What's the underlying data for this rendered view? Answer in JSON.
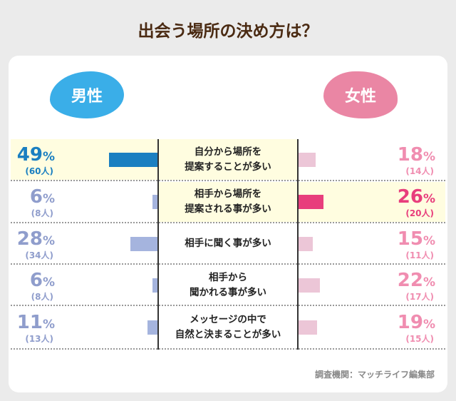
{
  "chart_data": {
    "type": "bar",
    "title": "出会う場所の決め方は？",
    "series": [
      {
        "name": "男性",
        "values": [
          49,
          6,
          28,
          6,
          11
        ],
        "counts": [
          "(60人)",
          "(8人)",
          "(34人)",
          "(8人)",
          "(13人)"
        ]
      },
      {
        "name": "女性",
        "values": [
          18,
          26,
          15,
          22,
          19
        ],
        "counts": [
          "(14人)",
          "(20人)",
          "(11人)",
          "(17人)",
          "(15人)"
        ]
      }
    ],
    "categories": [
      "自分から場所を\n提案することが多い",
      "相手から場所を\n提案される事が多い",
      "相手に聞く事が多い",
      "相手から\n聞かれる事が多い",
      "メッセージの中で\n自然と決まることが多い"
    ],
    "highlight": {
      "male": 0,
      "female": 1
    },
    "colors": {
      "male_highlight": "#1a7fc1",
      "male": "#8f9dcc",
      "male_bar": "#a5b4de",
      "female_highlight": "#e83e7c",
      "female": "#f08db0",
      "female_bar": "#ecc6d7"
    }
  },
  "credit": "調査機関：マッチライフ編集部"
}
